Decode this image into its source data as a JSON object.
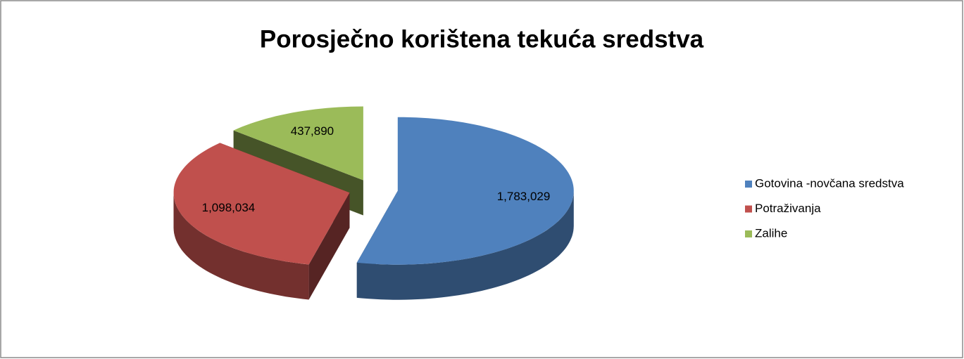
{
  "chart_data": {
    "type": "pie",
    "title": "Porosječno korištena tekuća sredstva",
    "categories": [
      "Gotovina -novčana sredstva",
      "Potraživanja",
      "Zalihe"
    ],
    "values": [
      1783029,
      1098034,
      437890
    ],
    "value_labels": [
      "1,783,029",
      "1,098,034",
      "437,890"
    ],
    "colors": [
      "#4f81bd",
      "#c0504d",
      "#9bbb59"
    ],
    "legend": "right"
  }
}
